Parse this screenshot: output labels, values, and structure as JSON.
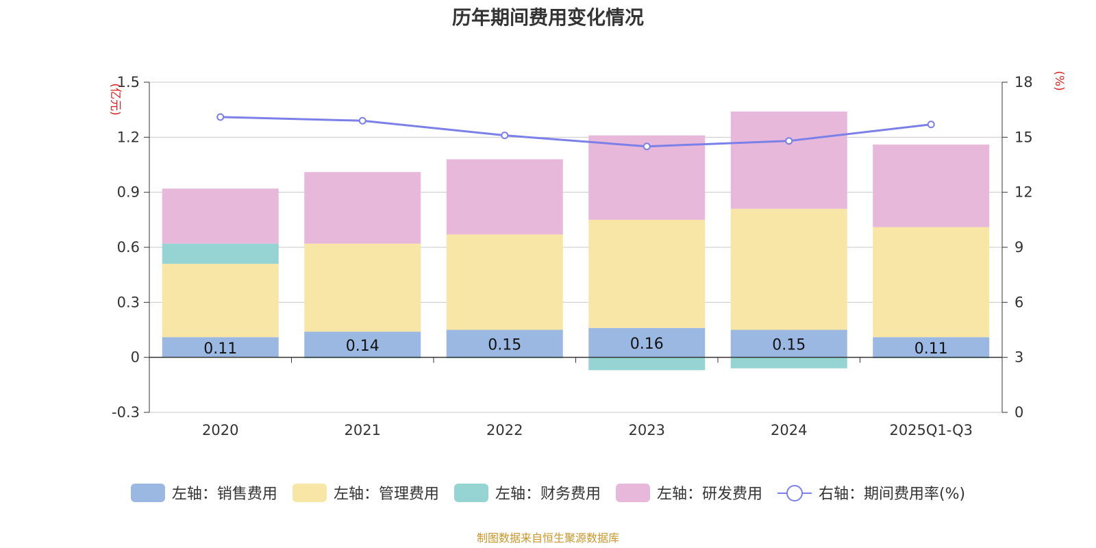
{
  "chart_data": {
    "type": "bar",
    "title": "历年期间费用变化情况",
    "categories": [
      "2020",
      "2021",
      "2022",
      "2023",
      "2024",
      "2025Q1-Q3"
    ],
    "left_axis": {
      "unit": "(亿元)",
      "ylim": [
        -0.3,
        1.5
      ],
      "ticks": [
        "-0.3",
        "0",
        "0.3",
        "0.6",
        "0.9",
        "1.2",
        "1.5"
      ]
    },
    "right_axis": {
      "unit": "(%)",
      "ylim": [
        0,
        18
      ],
      "ticks": [
        "0",
        "3",
        "6",
        "9",
        "12",
        "15",
        "18"
      ]
    },
    "series": [
      {
        "name": "左轴：销售费用",
        "type": "bar",
        "stack": true,
        "color": "#9bb8e3",
        "values": [
          0.11,
          0.14,
          0.15,
          0.16,
          0.15,
          0.11
        ],
        "labels": [
          "0.11",
          "0.14",
          "0.15",
          "0.16",
          "0.15",
          "0.11"
        ]
      },
      {
        "name": "左轴：管理费用",
        "type": "bar",
        "stack": true,
        "color": "#f8e6a6",
        "values": [
          0.4,
          0.48,
          0.52,
          0.59,
          0.66,
          0.6
        ]
      },
      {
        "name": "左轴：财务费用",
        "type": "bar",
        "stack": true,
        "color": "#96d4d4",
        "values": [
          0.11,
          -0.005,
          -0.005,
          -0.07,
          -0.06,
          -0.005
        ]
      },
      {
        "name": "左轴：研发费用",
        "type": "bar",
        "stack": true,
        "color": "#e7b8d9",
        "values": [
          0.3,
          0.39,
          0.41,
          0.46,
          0.53,
          0.45
        ]
      },
      {
        "name": "右轴：期间费用率(%)",
        "type": "line",
        "axis": "right",
        "color": "#7b7fe8",
        "values": [
          16.1,
          15.9,
          15.1,
          14.5,
          14.8,
          15.7
        ]
      }
    ],
    "grid": true,
    "legend_position": "bottom",
    "source": "制图数据来自恒生聚源数据库"
  }
}
